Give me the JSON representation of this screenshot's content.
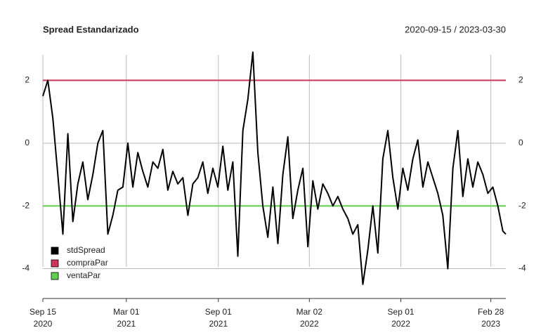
{
  "chart_data": {
    "type": "line",
    "title": "Spread Estandarizado",
    "subtitle": "2020-09-15 / 2023-03-30",
    "x": [
      "2020-09-15",
      "2020-09-25",
      "2020-10-05",
      "2020-10-15",
      "2020-10-25",
      "2020-11-04",
      "2020-11-14",
      "2020-11-24",
      "2020-12-04",
      "2020-12-14",
      "2020-12-24",
      "2021-01-03",
      "2021-01-13",
      "2021-01-23",
      "2021-02-02",
      "2021-02-12",
      "2021-02-22",
      "2021-03-04",
      "2021-03-14",
      "2021-03-24",
      "2021-04-03",
      "2021-04-13",
      "2021-04-23",
      "2021-05-03",
      "2021-05-13",
      "2021-05-23",
      "2021-06-02",
      "2021-06-12",
      "2021-06-22",
      "2021-07-02",
      "2021-07-12",
      "2021-07-22",
      "2021-08-01",
      "2021-08-11",
      "2021-08-21",
      "2021-08-31",
      "2021-09-10",
      "2021-09-20",
      "2021-09-30",
      "2021-10-10",
      "2021-10-20",
      "2021-10-30",
      "2021-11-09",
      "2021-11-19",
      "2021-11-29",
      "2021-12-09",
      "2021-12-19",
      "2021-12-29",
      "2022-01-08",
      "2022-01-18",
      "2022-01-28",
      "2022-02-07",
      "2022-02-17",
      "2022-02-27",
      "2022-03-09",
      "2022-03-19",
      "2022-03-29",
      "2022-04-08",
      "2022-04-18",
      "2022-04-28",
      "2022-05-08",
      "2022-05-18",
      "2022-05-28",
      "2022-06-07",
      "2022-06-17",
      "2022-06-27",
      "2022-07-07",
      "2022-07-17",
      "2022-07-27",
      "2022-08-06",
      "2022-08-16",
      "2022-08-26",
      "2022-09-05",
      "2022-09-15",
      "2022-09-25",
      "2022-10-05",
      "2022-10-15",
      "2022-10-25",
      "2022-11-04",
      "2022-11-14",
      "2022-11-24",
      "2022-12-04",
      "2022-12-14",
      "2022-12-24",
      "2023-01-03",
      "2023-01-13",
      "2023-01-23",
      "2023-02-02",
      "2023-02-12",
      "2023-02-22",
      "2023-03-04",
      "2023-03-14",
      "2023-03-24",
      "2023-03-30"
    ],
    "series": [
      {
        "name": "stdSpread",
        "color": "#000000",
        "values": [
          1.5,
          2.0,
          0.8,
          -1.0,
          -2.9,
          0.3,
          -2.5,
          -1.3,
          -0.6,
          -1.8,
          -1.0,
          0.0,
          0.4,
          -2.9,
          -2.3,
          -1.5,
          -1.4,
          0.0,
          -1.4,
          -0.3,
          -0.9,
          -1.4,
          -0.6,
          -0.8,
          -0.2,
          -1.5,
          -0.9,
          -1.3,
          -1.1,
          -2.3,
          -1.3,
          -1.1,
          -0.6,
          -1.6,
          -0.8,
          -1.4,
          -0.1,
          -1.5,
          -0.6,
          -3.6,
          0.4,
          1.4,
          2.9,
          -0.3,
          -2.0,
          -3.0,
          -1.4,
          -3.2,
          -1.0,
          0.2,
          -2.4,
          -1.5,
          -0.8,
          -3.3,
          -1.2,
          -2.1,
          -1.3,
          -1.6,
          -2.0,
          -1.7,
          -2.1,
          -2.4,
          -2.9,
          -2.6,
          -4.5,
          -3.4,
          -2.0,
          -3.5,
          -0.5,
          0.4,
          -1.1,
          -2.1,
          -0.8,
          -1.5,
          -0.5,
          0.1,
          -1.4,
          -0.6,
          -1.1,
          -1.6,
          -2.3,
          -4.0,
          -0.8,
          0.4,
          -1.7,
          -0.5,
          -1.4,
          -0.6,
          -1.0,
          -1.6,
          -1.4,
          -2.0,
          -2.8,
          -2.9
        ]
      },
      {
        "name": "compraPar",
        "color": "#d1345b",
        "x": [
          "2020-09-15",
          "2023-03-30"
        ],
        "values": [
          2,
          2
        ]
      },
      {
        "name": "ventaPar",
        "color": "#61d04f",
        "x": [
          "2020-09-15",
          "2023-03-30"
        ],
        "values": [
          -2,
          -2
        ]
      }
    ],
    "xlim": [
      "2020-09-15",
      "2023-03-30"
    ],
    "xticks": [
      {
        "value": "2020-09-15",
        "label": "Sep 15\n2020"
      },
      {
        "value": "2021-03-01",
        "label": "Mar 01\n2021"
      },
      {
        "value": "2021-09-01",
        "label": "Sep 01\n2021"
      },
      {
        "value": "2022-03-02",
        "label": "Mar 02\n2022"
      },
      {
        "value": "2022-09-01",
        "label": "Sep 01\n2022"
      },
      {
        "value": "2023-02-28",
        "label": "Feb 28\n2023"
      }
    ],
    "ylim": [
      -4.95,
      2.95
    ],
    "yticks": [
      -4,
      -2,
      0,
      2
    ],
    "grid": true,
    "legend": "bottom-left"
  }
}
